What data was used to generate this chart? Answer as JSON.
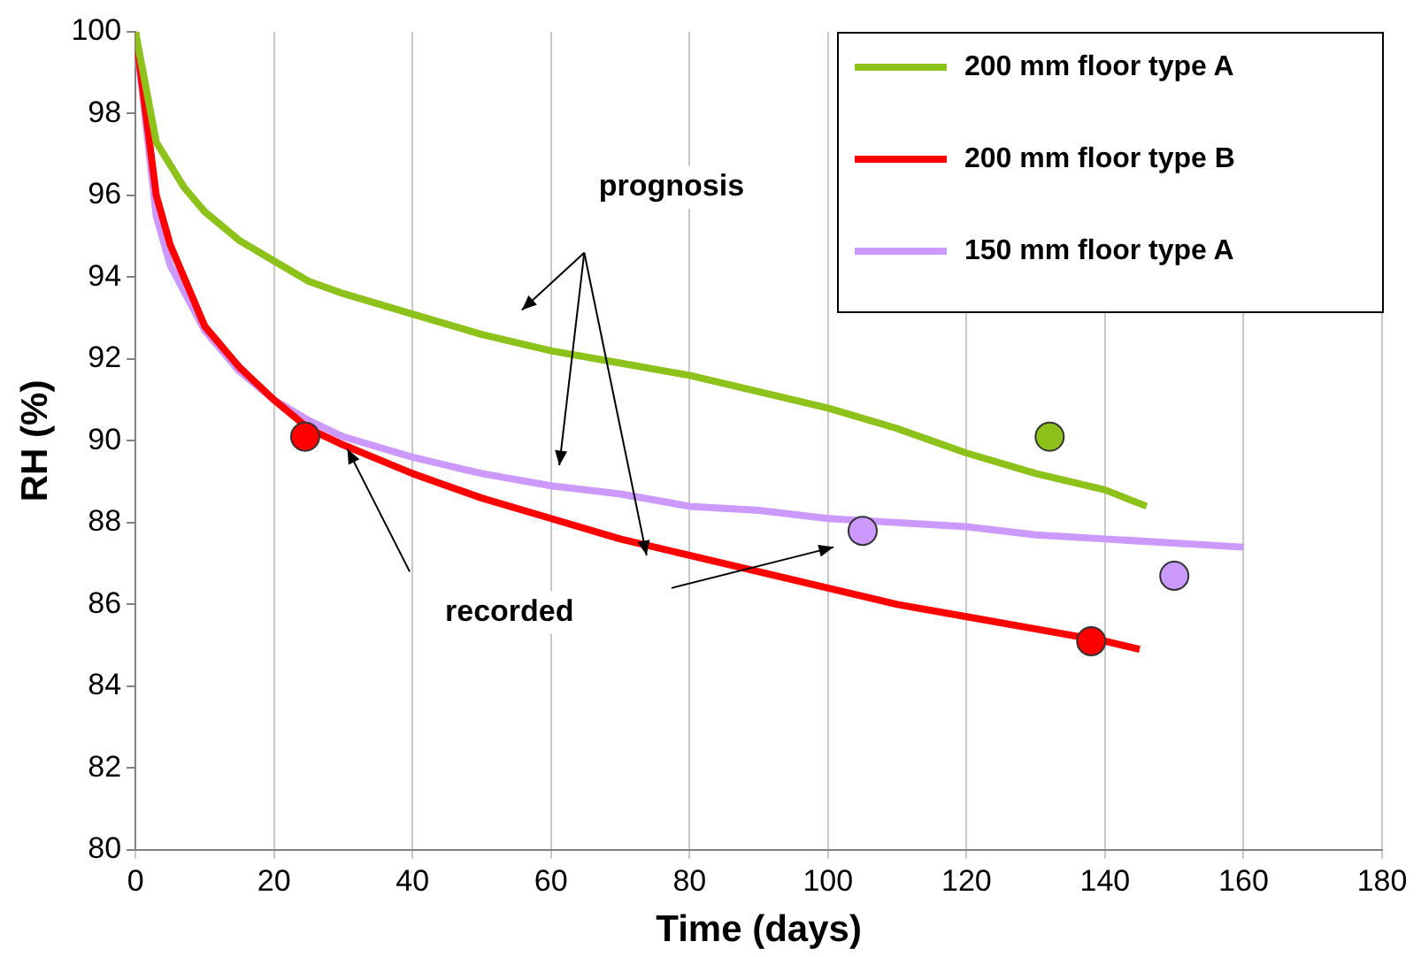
{
  "chart_data": {
    "type": "line",
    "xlabel": "Time (days)",
    "ylabel": "RH (%)",
    "xlim": [
      0,
      180
    ],
    "xticks": [
      0,
      20,
      40,
      60,
      80,
      100,
      120,
      140,
      160,
      180
    ],
    "ylim": [
      80,
      100
    ],
    "yticks": [
      80,
      82,
      84,
      86,
      88,
      90,
      92,
      94,
      96,
      98,
      100
    ],
    "grid": "x",
    "legend": "top right",
    "marker": "none",
    "line_style": "solid",
    "annotations": [
      "prognosis",
      "recorded"
    ],
    "series": [
      {
        "name": "200 mm floor type A",
        "color": "#8cc21a",
        "x": [
          0,
          3,
          7,
          10,
          15,
          20,
          25,
          30,
          40,
          50,
          60,
          70,
          80,
          90,
          100,
          110,
          120,
          130,
          140,
          146
        ],
        "values": [
          100,
          97.3,
          96.2,
          95.6,
          94.9,
          94.4,
          93.9,
          93.6,
          93.1,
          92.6,
          92.2,
          91.9,
          91.6,
          91.2,
          90.8,
          90.3,
          89.7,
          89.2,
          88.8,
          88.4
        ]
      },
      {
        "name": "200 mm floor type B",
        "color": "#ff0000",
        "x": [
          0,
          3,
          5,
          10,
          15,
          20,
          25,
          30,
          40,
          50,
          60,
          70,
          80,
          90,
          100,
          110,
          120,
          130,
          140,
          145
        ],
        "values": [
          100,
          96,
          94.8,
          92.8,
          91.8,
          91,
          90.3,
          89.9,
          89.2,
          88.6,
          88.1,
          87.6,
          87.2,
          86.8,
          86.4,
          86,
          85.7,
          85.4,
          85.1,
          84.9
        ]
      },
      {
        "name": "150 mm floor type A",
        "color": "#cc99ff",
        "x": [
          0,
          3,
          5,
          10,
          15,
          20,
          25,
          30,
          40,
          50,
          60,
          70,
          80,
          90,
          100,
          110,
          120,
          130,
          140,
          150,
          160
        ],
        "values": [
          100,
          95.5,
          94.3,
          92.7,
          91.7,
          91,
          90.5,
          90.1,
          89.6,
          89.2,
          88.9,
          88.7,
          88.4,
          88.3,
          88.1,
          88,
          87.9,
          87.7,
          87.6,
          87.5,
          87.4
        ]
      },
      {
        "type": "scatter",
        "marker": "circle",
        "color": "#8cc21a",
        "x": [
          132
        ],
        "values": [
          90.1
        ]
      },
      {
        "type": "scatter",
        "marker": "circle",
        "color": "#ff0000",
        "x": [
          24.5,
          138
        ],
        "values": [
          90.1,
          85.1
        ]
      },
      {
        "type": "scatter",
        "marker": "circle",
        "color": "#cc99ff",
        "x": [
          105,
          150
        ],
        "values": [
          87.8,
          86.7
        ]
      }
    ]
  }
}
